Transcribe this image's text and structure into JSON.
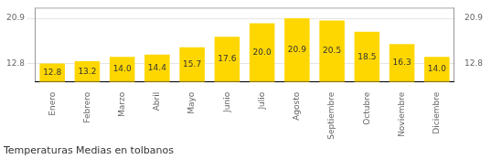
{
  "chart_data": {
    "type": "bar",
    "title": "Temperaturas Medias en tolbanos",
    "categories": [
      "Enero",
      "Febrero",
      "Marzo",
      "Abril",
      "Mayo",
      "Junio",
      "Julio",
      "Agosto",
      "Septiembre",
      "Octubre",
      "Noviembre",
      "Diciembre"
    ],
    "values": [
      12.8,
      13.2,
      14.0,
      14.4,
      15.7,
      17.6,
      20.0,
      20.9,
      20.5,
      18.5,
      16.3,
      14.0
    ],
    "value_labels": [
      "12.8",
      "13.2",
      "14.0",
      "14.4",
      "15.7",
      "17.6",
      "20.0",
      "20.9",
      "20.5",
      "18.5",
      "16.3",
      "14.0"
    ],
    "color": "#FFD700",
    "ylim": [
      9.5,
      22.8
    ],
    "yticks": [
      12.8,
      20.9
    ],
    "y2lim": [
      9.5,
      22.8
    ],
    "y2ticks": [
      12.8,
      20.9
    ],
    "grid": true,
    "data_labels": true
  }
}
